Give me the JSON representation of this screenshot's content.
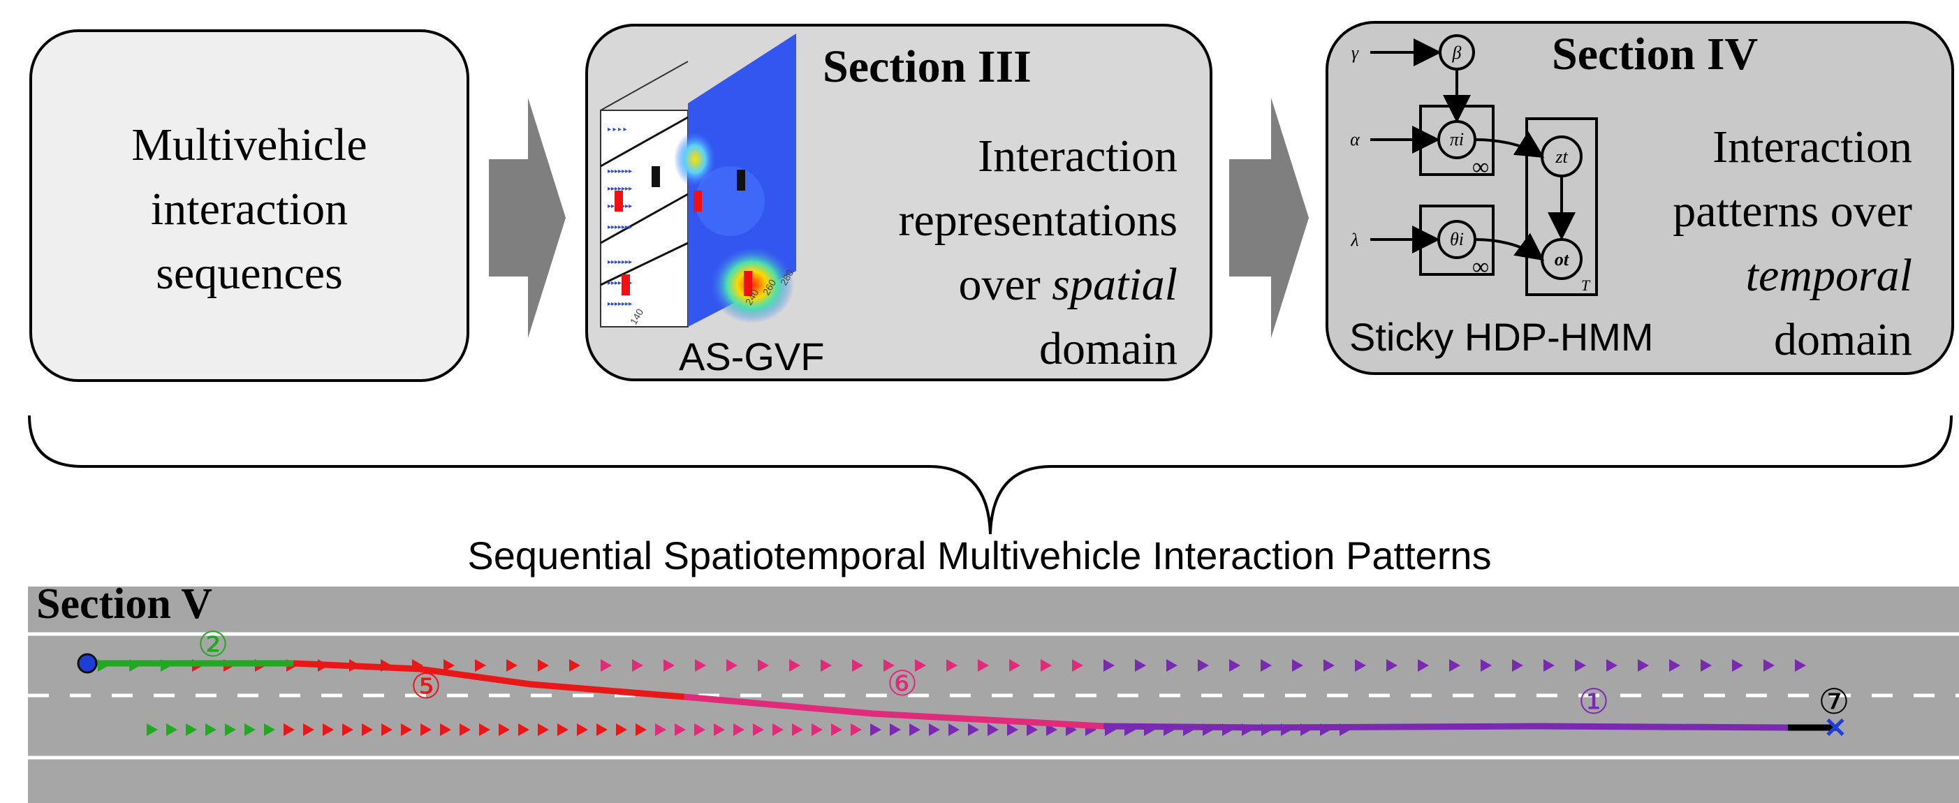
{
  "box1": {
    "lines": [
      "Multivehicle",
      "interaction",
      "sequences"
    ]
  },
  "box2": {
    "title": "Section III",
    "lines": [
      "Interaction",
      "representations"
    ],
    "line3_prefix": "over ",
    "line3_italic": "spatial",
    "line4": "domain",
    "figure_label": "AS-GVF",
    "fig_ticks": [
      "240",
      "260",
      "280",
      "140"
    ]
  },
  "box3": {
    "title": "Section IV",
    "lines": [
      "Interaction",
      "patterns over"
    ],
    "line3_italic": "temporal",
    "line4": "domain",
    "model_label": "Sticky HDP-HMM",
    "graph": {
      "gamma": "γ",
      "beta": "β",
      "alpha": "α",
      "lambda": "λ",
      "pi": "πi",
      "theta": "θi",
      "z": "zt",
      "o": "ot",
      "inf1": "∞",
      "inf2": "∞",
      "T": "T"
    }
  },
  "caption": "Sequential Spatiotemporal Multivehicle Interaction Patterns",
  "section5": {
    "title": "Section V",
    "markers": [
      "②",
      "⑤",
      "⑥",
      "①",
      "⑦"
    ]
  },
  "colors": {
    "green": "#22a822",
    "red": "#e81818",
    "pink": "#e02a7a",
    "purple": "#7a2ab0",
    "road": "#a6a6a6",
    "arrow": "#7f7f7f"
  }
}
